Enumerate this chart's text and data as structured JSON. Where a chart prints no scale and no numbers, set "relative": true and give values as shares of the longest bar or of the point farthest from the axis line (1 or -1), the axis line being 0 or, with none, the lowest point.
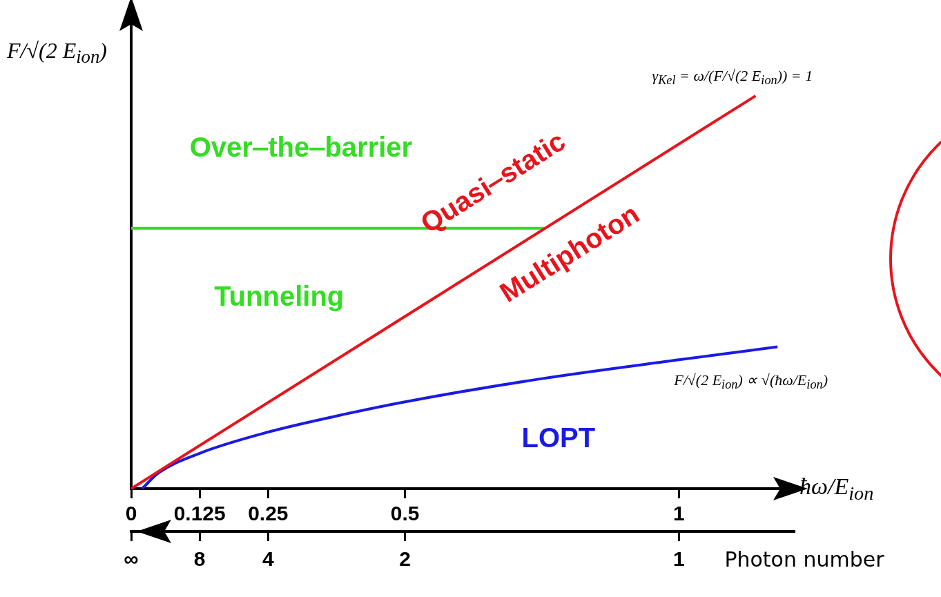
{
  "chart_data": {
    "type": "line",
    "relative": true,
    "ylabel": "F/√(2 E$_{ion}$)",
    "xlabel": "ħω/E$_{ion}$",
    "xlim": [
      0,
      1.21
    ],
    "xticks": [
      0,
      0.125,
      0.25,
      0.5,
      1
    ],
    "grid": false,
    "legend": false,
    "marker": "none",
    "line_style": "solid",
    "series": [
      {
        "name": "γ$_{Kel}$ = ω/(F/√(2 E$_{ion}$)) = 1",
        "color": "#e8141c",
        "x": [
          0,
          1.14
        ],
        "values": [
          0,
          1
        ]
      },
      {
        "name": "F/√(2 E$_{ion}$) ∝ √(ħω/E$_{ion}$)",
        "color": "#1a1ae6",
        "x": [
          0.02,
          0.05,
          0.125,
          0.25,
          0.375,
          0.5,
          0.75,
          1,
          1.18
        ],
        "values": [
          0,
          0.04,
          0.09,
          0.144,
          0.185,
          0.221,
          0.28,
          0.328,
          0.361
        ]
      },
      {
        "color": "#33dd22",
        "x": [
          0,
          0.754
        ],
        "values": [
          0.663,
          0.663
        ]
      }
    ],
    "annotations": [
      "Over‒the‒barrier",
      "Tunneling",
      "Quasi‒static",
      "Multiphoton",
      "LOPT",
      {
        "text": "∞",
        "x": 0
      },
      {
        "text": "8",
        "x": 0.125
      },
      {
        "text": "4",
        "x": 0.25
      },
      {
        "text": "2",
        "x": 0.5
      },
      {
        "text": "1",
        "x": 1
      },
      "Photon number"
    ]
  }
}
